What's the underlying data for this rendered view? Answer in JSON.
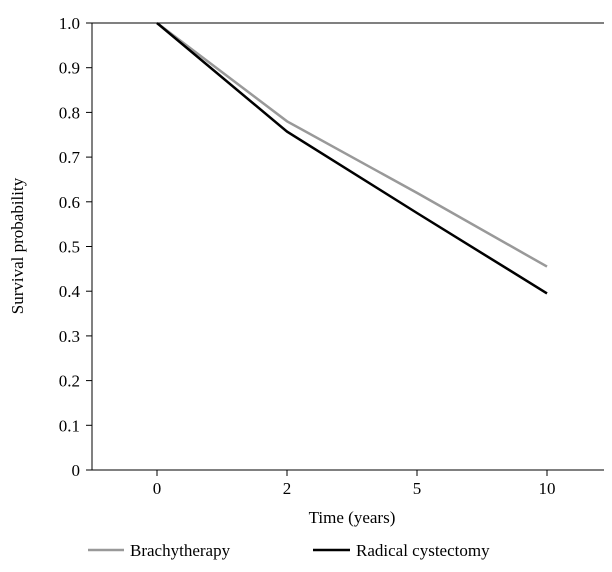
{
  "chart_data": {
    "type": "line",
    "title": "",
    "xlabel": "Time (years)",
    "ylabel": "Survival probability",
    "categories": [
      "0",
      "2",
      "5",
      "10"
    ],
    "ylim": [
      0,
      1.0
    ],
    "yticks": [
      "0",
      "0.1",
      "0.2",
      "0.3",
      "0.4",
      "0.5",
      "0.6",
      "0.7",
      "0.8",
      "0.9",
      "1.0"
    ],
    "grid": false,
    "legend_position": "bottom",
    "series": [
      {
        "name": "Brachytherapy",
        "values": [
          1.0,
          0.78,
          0.62,
          0.455
        ],
        "color": "#999999"
      },
      {
        "name": "Radical cystectomy",
        "values": [
          1.0,
          0.757,
          0.575,
          0.395
        ],
        "color": "#000000"
      }
    ]
  }
}
